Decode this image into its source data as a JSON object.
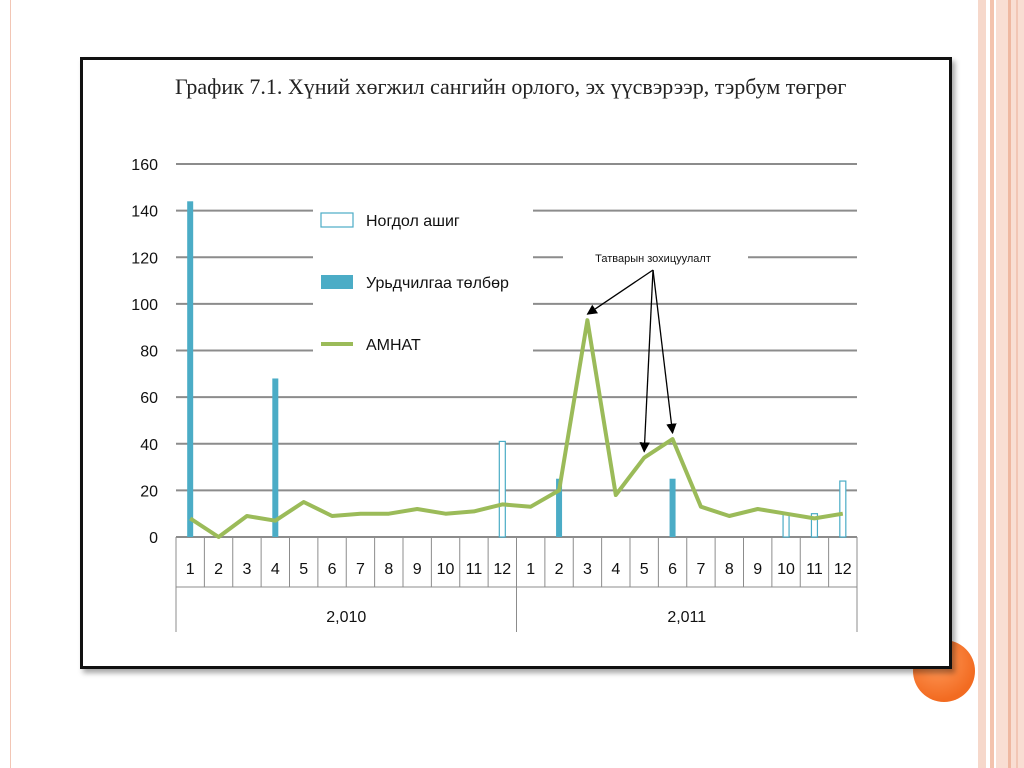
{
  "chart_data": {
    "type": "bar",
    "title": "График 7.1. Хүний хөгжил сангийн орлого, эх үүсвэрээр, тэрбум төгрөг",
    "ylim": [
      0,
      160
    ],
    "yticks": [
      "0",
      "20",
      "40",
      "60",
      "80",
      "100",
      "120",
      "140",
      "160"
    ],
    "categories": [
      "1",
      "2",
      "3",
      "4",
      "5",
      "6",
      "7",
      "8",
      "9",
      "10",
      "11",
      "12",
      "1",
      "2",
      "3",
      "4",
      "5",
      "6",
      "7",
      "8",
      "9",
      "10",
      "11",
      "12"
    ],
    "groups": [
      {
        "label": "2,010",
        "count": 12
      },
      {
        "label": "2,011",
        "count": 12
      }
    ],
    "grid": true,
    "legend_position": "top-left",
    "series": [
      {
        "name": "Ногдол ашиг",
        "type": "bar",
        "style": "outline",
        "color": "#4bacc6",
        "values": [
          0,
          0,
          0,
          0,
          0,
          0,
          0,
          0,
          0,
          0,
          0,
          41,
          0,
          0,
          0,
          0,
          0,
          0,
          0,
          0,
          0,
          10,
          10,
          24
        ]
      },
      {
        "name": "Урьдчилгаа төлбөр",
        "type": "bar",
        "style": "solid",
        "color": "#4bacc6",
        "values": [
          144,
          0,
          0,
          68,
          0,
          0,
          0,
          0,
          0,
          0,
          0,
          0,
          0,
          25,
          0,
          0,
          0,
          25,
          0,
          0,
          0,
          0,
          0,
          0
        ]
      },
      {
        "name": "АМНАТ",
        "type": "line",
        "color": "#9bbb59",
        "values": [
          8,
          0,
          9,
          7,
          15,
          9,
          10,
          10,
          12,
          10,
          11,
          14,
          13,
          20,
          93,
          18,
          34,
          42,
          13,
          9,
          12,
          10,
          8,
          10
        ]
      }
    ],
    "annotation": {
      "text": "Татварын зохицуулалт",
      "targets": [
        14,
        16,
        17
      ]
    }
  },
  "colors": {
    "accent": "#f26b21",
    "bar": "#4bacc6",
    "line": "#9bbb59"
  }
}
